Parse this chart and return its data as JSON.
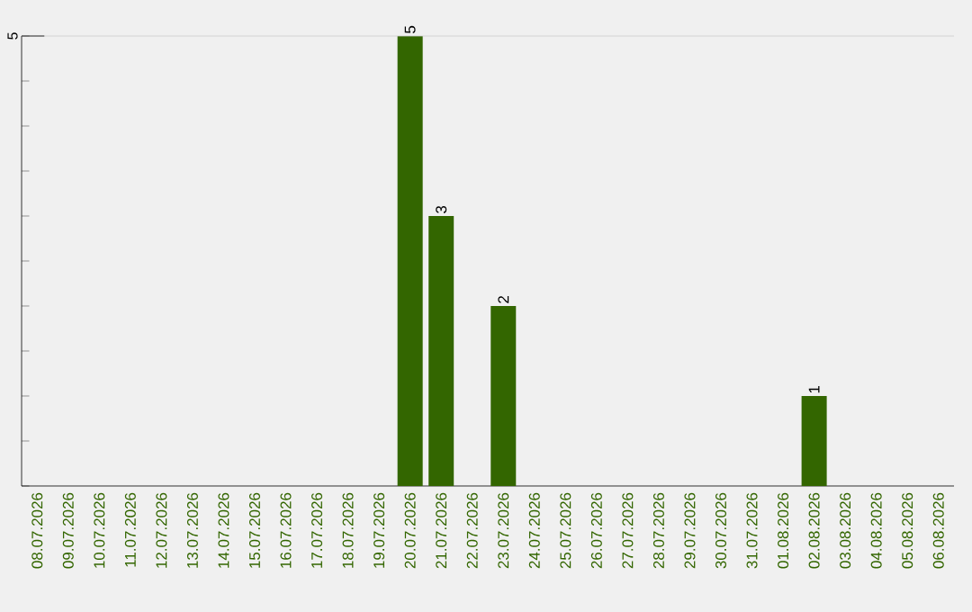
{
  "chart_data": {
    "type": "bar",
    "categories": [
      "08.07.2026",
      "09.07.2026",
      "10.07.2026",
      "11.07.2026",
      "12.07.2026",
      "13.07.2026",
      "14.07.2026",
      "15.07.2026",
      "16.07.2026",
      "17.07.2026",
      "18.07.2026",
      "19.07.2026",
      "20.07.2026",
      "21.07.2026",
      "22.07.2026",
      "23.07.2026",
      "24.07.2026",
      "25.07.2026",
      "26.07.2026",
      "27.07.2026",
      "28.07.2026",
      "29.07.2026",
      "30.07.2026",
      "31.07.2026",
      "01.08.2026",
      "02.08.2026",
      "03.08.2026",
      "04.08.2026",
      "05.08.2026",
      "06.08.2026"
    ],
    "values": [
      null,
      null,
      null,
      null,
      null,
      null,
      null,
      null,
      null,
      null,
      null,
      null,
      5,
      3,
      null,
      2,
      null,
      null,
      null,
      null,
      null,
      null,
      null,
      null,
      null,
      1,
      null,
      null,
      null,
      null
    ],
    "data_labels": true,
    "color": "#336600",
    "ref_lines": [
      {
        "axis": "y",
        "value": 5,
        "label": "5",
        "color": "#cccccc"
      }
    ]
  }
}
